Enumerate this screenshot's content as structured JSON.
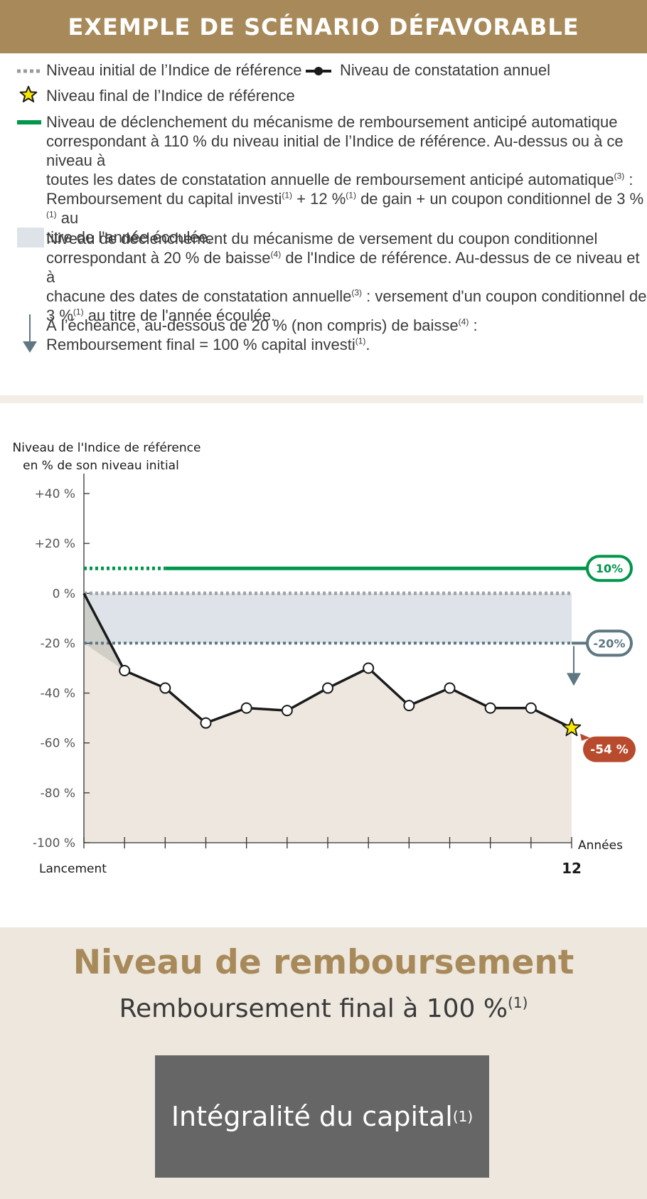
{
  "header": {
    "title": "EXEMPLE DE SCÉNARIO DÉFAVORABLE"
  },
  "legend": {
    "initial_level": "Niveau initial de l’Indice de référence",
    "observation_level": "Niveau de constatation annuel",
    "final_level": "Niveau final de l’Indice de référence",
    "autocall": {
      "line1": "Niveau de déclenchement du mécanisme de remboursement anticipé automatique",
      "line2": "correspondant à 110 % du niveau initial de l’Indice de référence. Au-dessus ou à ce niveau à",
      "line3": "toutes les dates de constatation annuelle de remboursement anticipé automatique",
      "line3_sup": "(3)",
      "line3_end": " :",
      "line4_a": "Remboursement du capital investi",
      "line4_sup1": "(1)",
      "line4_b": " + 12 %",
      "line4_sup2": "(1)",
      "line4_c": " de gain + un coupon conditionnel de 3 %",
      "line4_sup3": "(1)",
      "line4_d": " au",
      "line5": "titre de l'année écoulée."
    },
    "coupon": {
      "line1": "Niveau de déclenchement du mécanisme de versement du coupon conditionnel",
      "line2_a": "correspondant à 20 % de baisse",
      "line2_sup": "(4)",
      "line2_b": " de l'Indice de référence. Au-dessus de ce niveau et à",
      "line3_a": "chacune des dates de constatation annuelle",
      "line3_sup": "(3)",
      "line3_b": " : versement d'un coupon conditionnel de",
      "line4_a": "3 %",
      "line4_sup": "(1)",
      "line4_b": " au titre de l'année écoulée."
    },
    "maturity": {
      "line1_a": "À l’échéance, au-dessous de 20 % (non compris) de baisse",
      "line1_sup": "(4)",
      "line1_b": " :",
      "line2_a": "Remboursement final = 100 % capital investi",
      "line2_sup": "(1)",
      "line2_b": "."
    }
  },
  "chart_data": {
    "type": "line",
    "ylabel_line1": "Niveau de l'Indice de référence",
    "ylabel_line2": "en % de son niveau initial",
    "xlabel": "Années",
    "x_start_label": "Lancement",
    "x_end_label": "12",
    "ylim": [
      -100,
      40
    ],
    "yticks": [
      {
        "value": 40,
        "label": "+40 %"
      },
      {
        "value": 20,
        "label": "+20 %"
      },
      {
        "value": 0,
        "label": "0 %"
      },
      {
        "value": -20,
        "label": "-20 %"
      },
      {
        "value": -40,
        "label": "-40 %"
      },
      {
        "value": -60,
        "label": "-60 %"
      },
      {
        "value": -80,
        "label": "-80 %"
      },
      {
        "value": -100,
        "label": "-100 %"
      }
    ],
    "xlim": [
      0,
      12
    ],
    "x": [
      0,
      1,
      2,
      3,
      4,
      5,
      6,
      7,
      8,
      9,
      10,
      11,
      12
    ],
    "values": [
      0,
      -31,
      -38,
      -52,
      -46,
      -47,
      -38,
      -30,
      -45,
      -38,
      -46,
      -46,
      -54
    ],
    "autocall_level": 10,
    "autocall_label": "10%",
    "coupon_barrier": -20,
    "coupon_barrier_label": "-20%",
    "final_value": -54,
    "final_label": "-54 %",
    "colors": {
      "autocall": "#00964b",
      "barrier": "#5f7783",
      "band": "#dde3e8",
      "area": "#ede7e0",
      "series": "#1a1a1a",
      "final_badge": "#b84a2e",
      "star": "#f7e600"
    }
  },
  "bottom": {
    "title": "Niveau de remboursement",
    "subtitle": "Remboursement final à 100 %",
    "subtitle_sup": "(1)",
    "box_text": "Intégralité du capital",
    "box_sup": "(1)"
  }
}
